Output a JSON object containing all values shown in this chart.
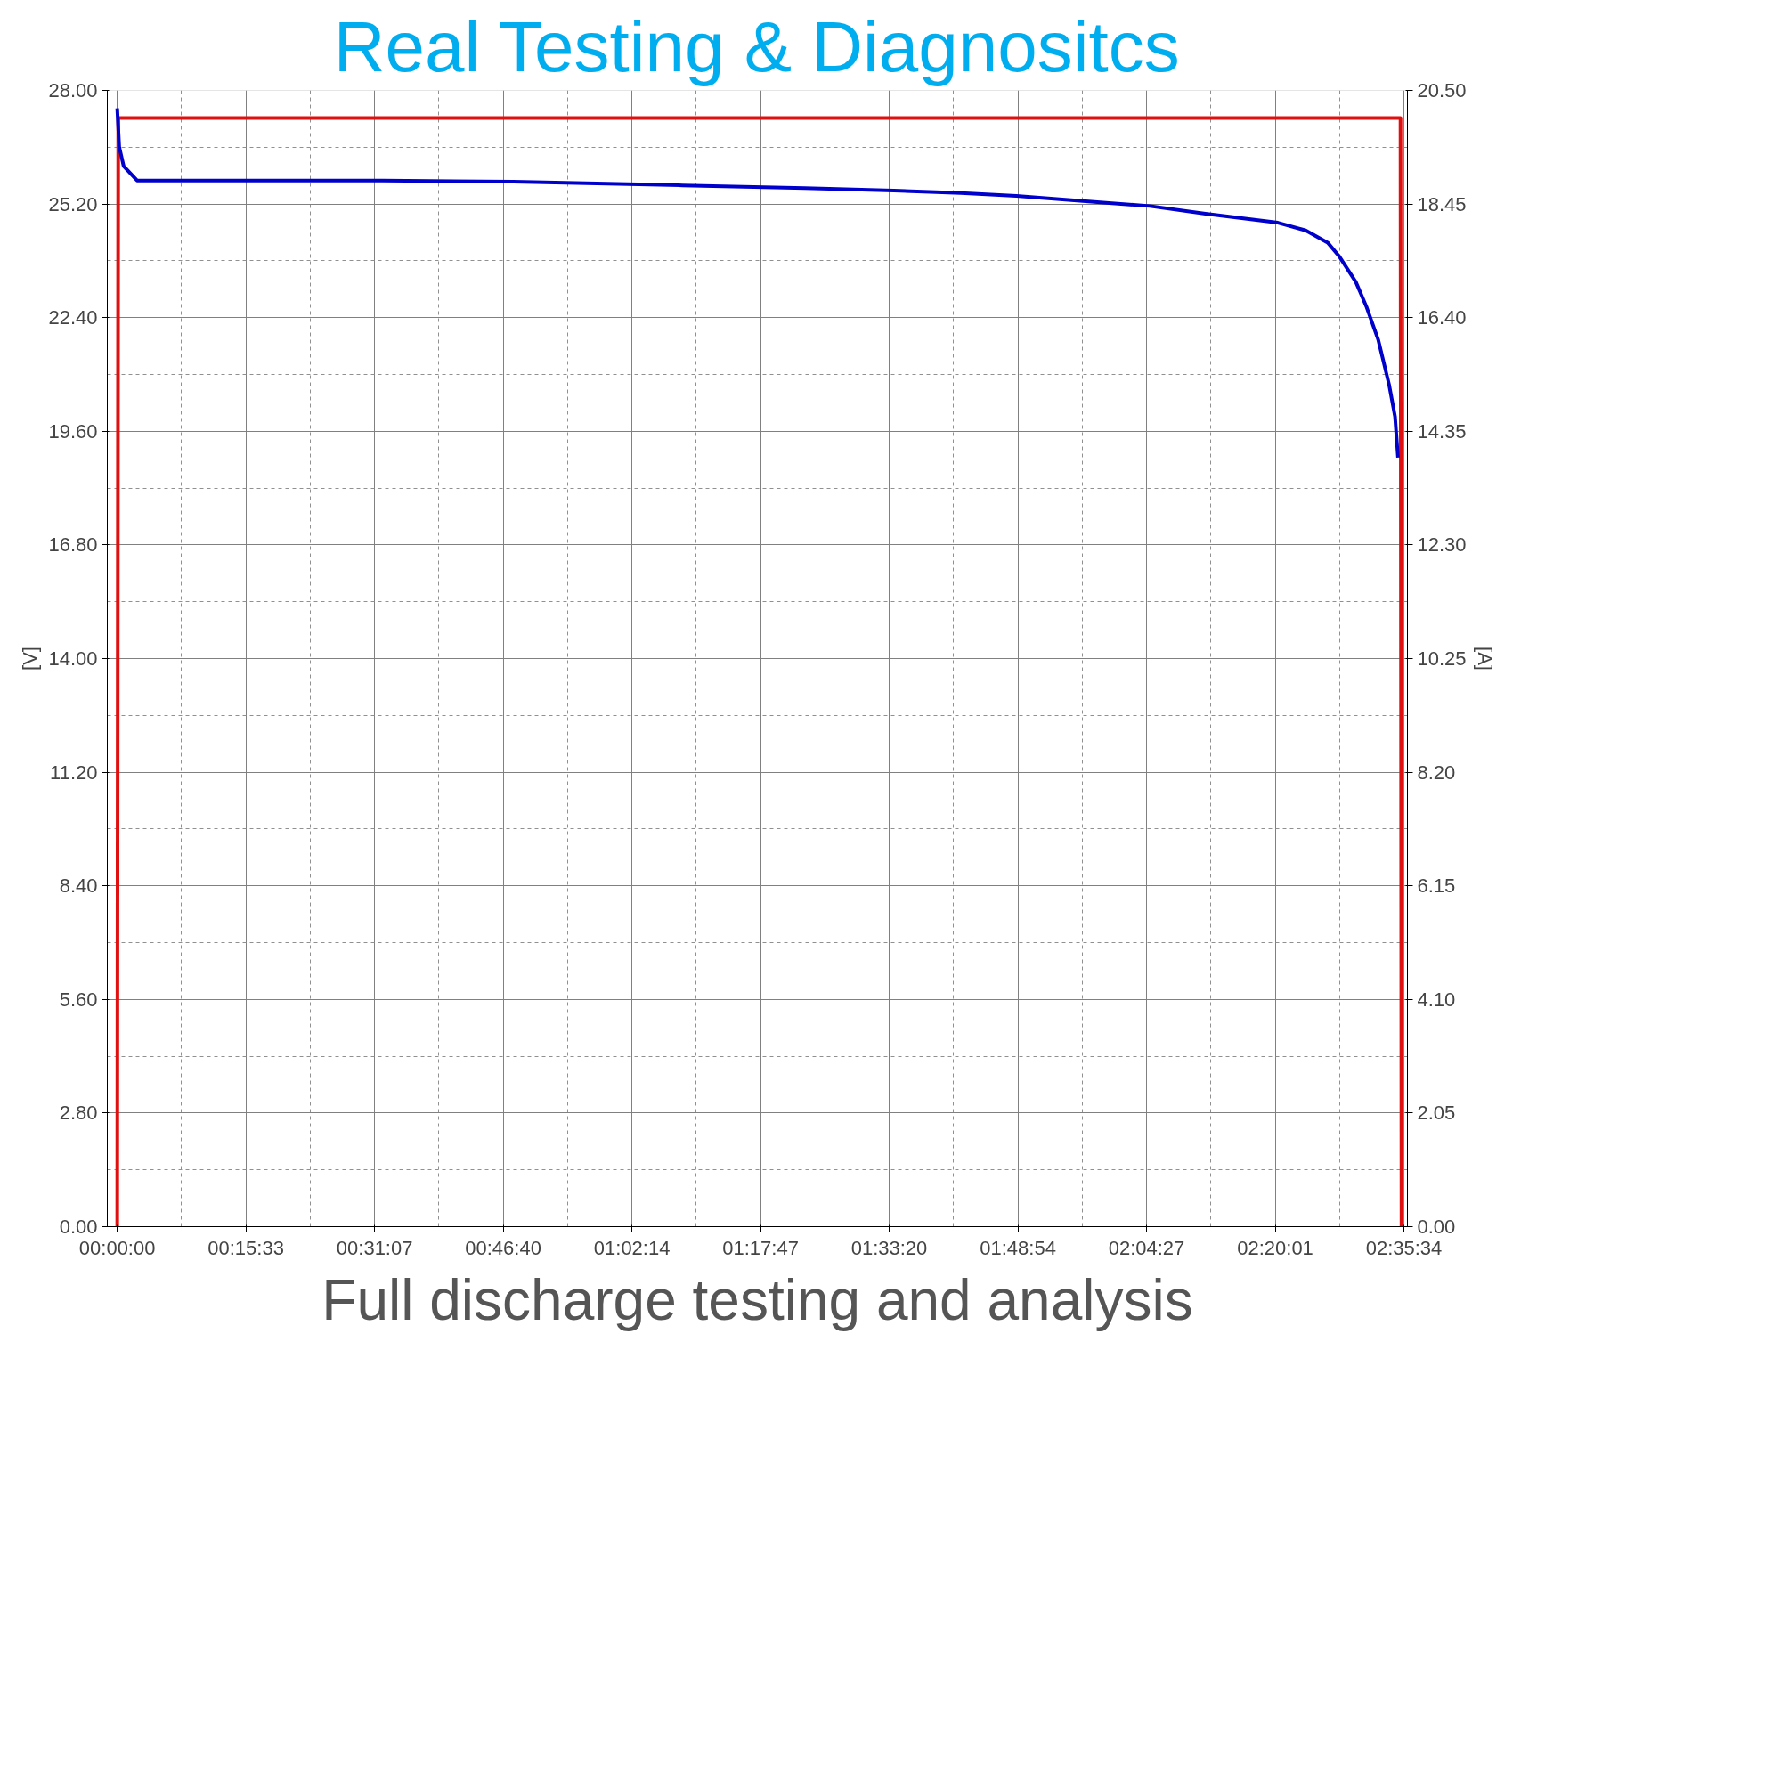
{
  "chart_data": {
    "type": "line",
    "title": "Real Testing & Diagnositcs",
    "ylabel": "[V]",
    "y2label": "[A]",
    "annotations": [
      "Full discharge testing and analysis"
    ],
    "xlim": [
      -0.02,
      2.6
    ],
    "xticks": [
      {
        "value": 0,
        "label": "00:00:00"
      },
      {
        "value": 0.2592,
        "label": "00:15:33"
      },
      {
        "value": 0.5186,
        "label": "00:31:07"
      },
      {
        "value": 0.7778,
        "label": "00:46:40"
      },
      {
        "value": 1.0372,
        "label": "01:02:14"
      },
      {
        "value": 1.2964,
        "label": "01:17:47"
      },
      {
        "value": 1.5556,
        "label": "01:33:20"
      },
      {
        "value": 1.815,
        "label": "01:48:54"
      },
      {
        "value": 2.0742,
        "label": "02:04:27"
      },
      {
        "value": 2.3336,
        "label": "02:20:01"
      },
      {
        "value": 2.5928,
        "label": "02:35:34"
      }
    ],
    "ylim": [
      0,
      28
    ],
    "yticks": [
      {
        "value": 0,
        "label": "0.00"
      },
      {
        "value": 2.8,
        "label": "2.80"
      },
      {
        "value": 5.6,
        "label": "5.60"
      },
      {
        "value": 8.4,
        "label": "8.40"
      },
      {
        "value": 11.2,
        "label": "11.20"
      },
      {
        "value": 14,
        "label": "14.00"
      },
      {
        "value": 16.8,
        "label": "16.80"
      },
      {
        "value": 19.6,
        "label": "19.60"
      },
      {
        "value": 22.4,
        "label": "22.40"
      },
      {
        "value": 25.2,
        "label": "25.20"
      },
      {
        "value": 28,
        "label": "28.00"
      }
    ],
    "y2lim": [
      0,
      20.5
    ],
    "y2ticks": [
      {
        "value": 0,
        "label": "0.00"
      },
      {
        "value": 2.05,
        "label": "2.05"
      },
      {
        "value": 4.1,
        "label": "4.10"
      },
      {
        "value": 6.15,
        "label": "6.15"
      },
      {
        "value": 8.2,
        "label": "8.20"
      },
      {
        "value": 10.25,
        "label": "10.25"
      },
      {
        "value": 12.3,
        "label": "12.30"
      },
      {
        "value": 14.35,
        "label": "14.35"
      },
      {
        "value": 16.4,
        "label": "16.40"
      },
      {
        "value": 18.45,
        "label": "18.45"
      },
      {
        "value": 20.5,
        "label": "20.50"
      }
    ],
    "grid": true,
    "marker": "none",
    "line_style": "solid",
    "series": [
      {
        "color": "#e01010",
        "axis": "y2",
        "x": [
          0,
          0.002,
          2.586,
          2.588
        ],
        "values": [
          0,
          20.0,
          20.0,
          0
        ]
      },
      {
        "color": "#0000cc",
        "x": [
          0,
          0.004,
          0.013,
          0.04,
          0.534,
          0.798,
          1.139,
          1.386,
          1.565,
          1.7,
          1.812,
          1.969,
          2.081,
          2.193,
          2.339,
          2.395,
          2.44,
          2.462,
          2.496,
          2.518,
          2.541,
          2.563,
          2.575,
          2.581
        ],
        "values": [
          27.56,
          26.61,
          26.13,
          25.78,
          25.78,
          25.75,
          25.66,
          25.59,
          25.53,
          25.47,
          25.4,
          25.25,
          25.15,
          24.96,
          24.74,
          24.55,
          24.24,
          23.92,
          23.28,
          22.65,
          21.86,
          20.75,
          19.96,
          18.95
        ]
      }
    ]
  }
}
